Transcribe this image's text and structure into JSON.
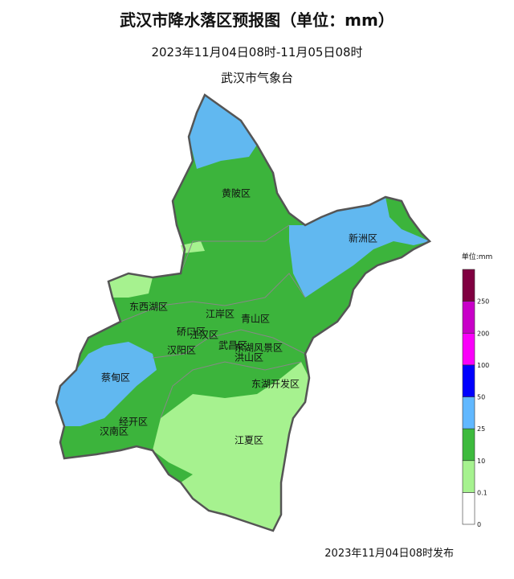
{
  "header": {
    "title": "武汉市降水落区预报图（单位：mm）",
    "period": "2023年11月04日08时-11月05日08时",
    "agency": "武汉市气象台"
  },
  "districts": [
    {
      "label": "黄陂区"
    },
    {
      "label": "新洲区"
    },
    {
      "label": "东西湖区"
    },
    {
      "label": "江岸区"
    },
    {
      "label": "青山区"
    },
    {
      "label": "硚口区"
    },
    {
      "label": "江汉区"
    },
    {
      "label": "汉阳区"
    },
    {
      "label": "武昌区"
    },
    {
      "label": "东湖风景区"
    },
    {
      "label": "洪山区"
    },
    {
      "label": "蔡甸区"
    },
    {
      "label": "东湖开发区"
    },
    {
      "label": "经开区"
    },
    {
      "label": "汉南区"
    },
    {
      "label": "江夏区"
    }
  ],
  "legend": {
    "title": "单位:mm",
    "levels": [
      {
        "label": "0",
        "color": "#ffffff"
      },
      {
        "label": "0.1",
        "color": "#a6f28f"
      },
      {
        "label": "10",
        "color": "#3dba3d"
      },
      {
        "label": "25",
        "color": "#61b8ff"
      },
      {
        "label": "50",
        "color": "#0000fe"
      },
      {
        "label": "100",
        "color": "#fa00fa"
      },
      {
        "label": "200",
        "color": "#c800c8"
      },
      {
        "label": "250",
        "color": "#800040"
      }
    ]
  },
  "footer": {
    "issued": "2023年11月04日08时发布"
  }
}
